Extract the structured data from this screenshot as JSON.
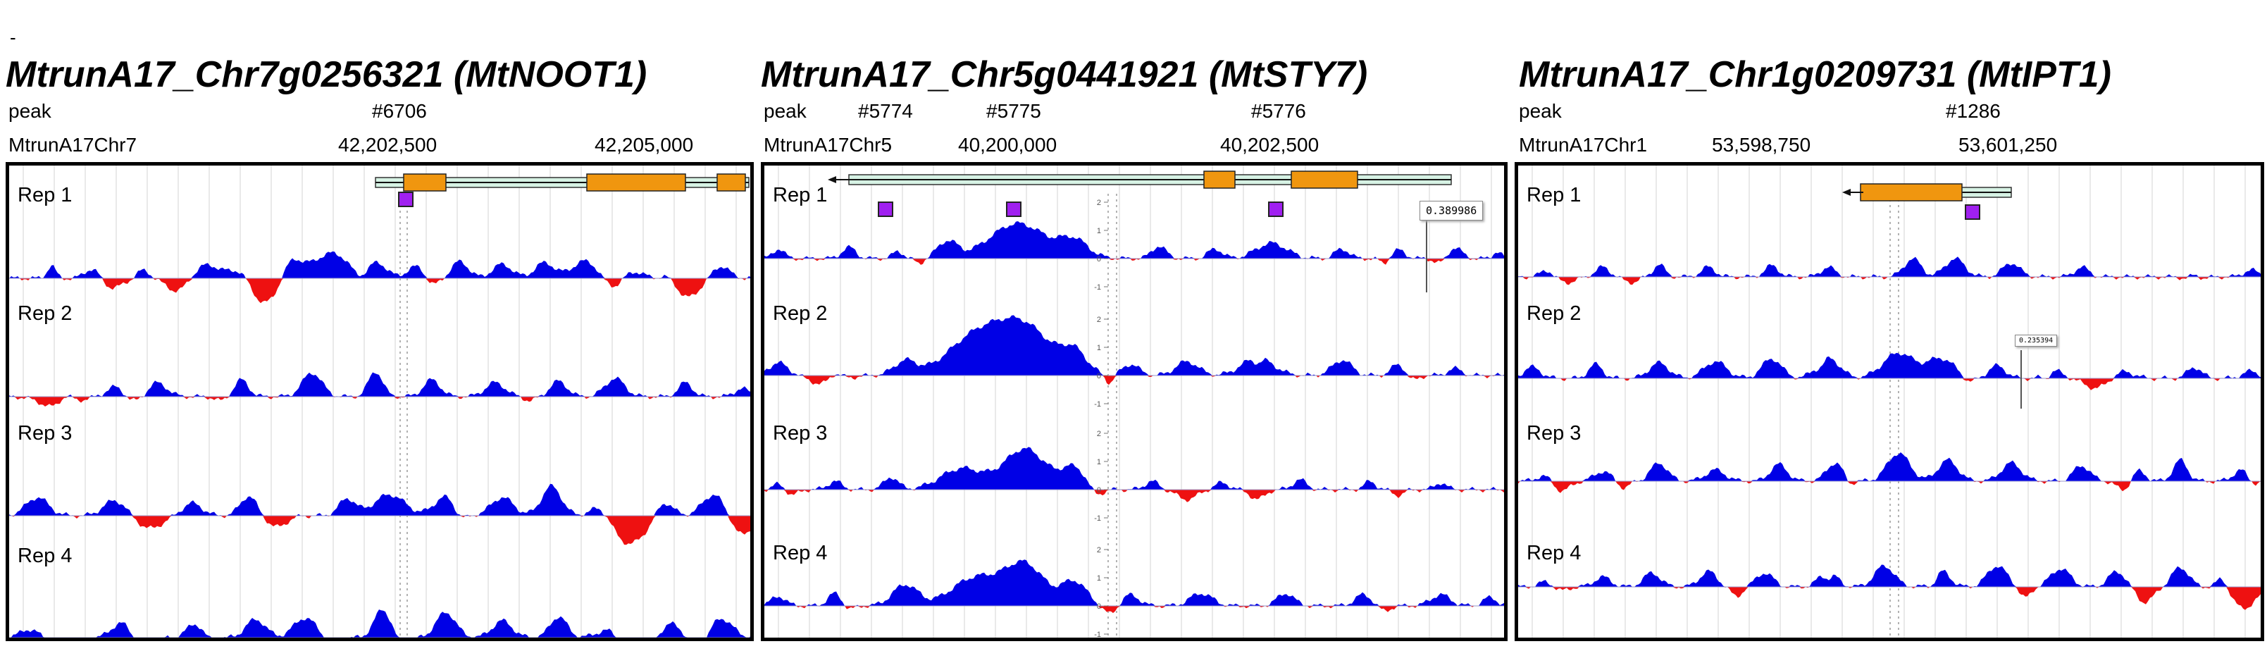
{
  "stray_mark": "-",
  "row_labels": {
    "peak": "peak"
  },
  "colors": {
    "positive": "#0000e6",
    "negative": "#ee1111",
    "exon": "#f0960f",
    "gene_body": "#d6f2e4",
    "peak_box": "#a020f0",
    "frame": "#000000",
    "grid": "#d3d3d3"
  },
  "panels": [
    {
      "title": "MtrunA17_Chr7g0256321 (MtNOOT1)",
      "chrom": "MtrunA17Chr7",
      "peaks": [
        "#6706"
      ],
      "coords": [
        "42,202,500",
        "42,205,000"
      ],
      "strand": "+",
      "reps": [
        "Rep 1",
        "Rep 2",
        "Rep 3",
        "Rep 4"
      ],
      "value_label": "",
      "scale_ticks": []
    },
    {
      "title": "MtrunA17_Chr5g0441921 (MtSTY7)",
      "chrom": "MtrunA17Chr5",
      "peaks": [
        "#5774",
        "#5775",
        "#5776"
      ],
      "coords": [
        "40,200,000",
        "40,202,500"
      ],
      "strand": "-",
      "reps": [
        "Rep 1",
        "Rep 2",
        "Rep 3",
        "Rep 4"
      ],
      "value_label": "0.389986",
      "scale_ticks": [
        "2",
        "1",
        "0",
        "-1"
      ]
    },
    {
      "title": "MtrunA17_Chr1g0209731 (MtIPT1)",
      "chrom": "MtrunA17Chr1",
      "peaks": [
        "#1286"
      ],
      "coords": [
        "53,598,750",
        "53,601,250"
      ],
      "strand": "-",
      "reps": [
        "Rep 1",
        "Rep 2",
        "Rep 3",
        "Rep 4"
      ],
      "value_label": "0.235394",
      "scale_ticks": []
    }
  ]
}
